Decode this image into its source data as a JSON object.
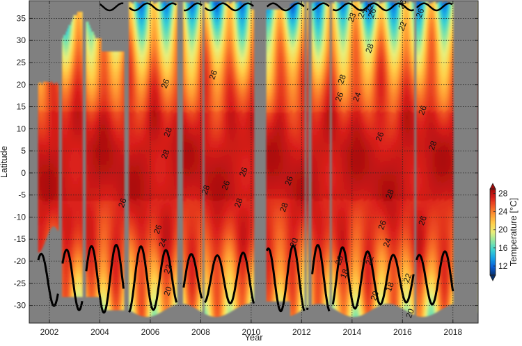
{
  "chart_data": {
    "type": "heatmap",
    "title": "",
    "xlabel": "Year",
    "ylabel": "Latitude",
    "colorbar_label": "Temperature [°C]",
    "xlim": [
      2001.2,
      2019.0
    ],
    "ylim": [
      -34,
      39
    ],
    "x_ticks": [
      2002,
      2004,
      2006,
      2008,
      2010,
      2012,
      2014,
      2016,
      2018
    ],
    "x_tick_labels": [
      "2002",
      "2004",
      "2006",
      "2008",
      "2010",
      "2012",
      "2014",
      "2016",
      "2018"
    ],
    "y_ticks": [
      -30,
      -25,
      -20,
      -15,
      -10,
      -5,
      0,
      5,
      10,
      15,
      20,
      25,
      30,
      35
    ],
    "y_tick_labels": [
      "-30",
      "-25",
      "-20",
      "-15",
      "-10",
      "-5",
      "0",
      "5",
      "10",
      "15",
      "20",
      "25",
      "30",
      "35"
    ],
    "colorbar": {
      "range": [
        10,
        29
      ],
      "ticks": [
        12,
        16,
        20,
        24,
        28
      ],
      "tick_labels": [
        "12",
        "16",
        "20",
        "24",
        "28"
      ],
      "colors": [
        "#08306b",
        "#0b5fd6",
        "#16a2e6",
        "#3cd3d0",
        "#8ee6a0",
        "#e8ee7a",
        "#ffd04a",
        "#ff9a32",
        "#f25a24",
        "#d91f1a",
        "#a00a0a"
      ]
    },
    "grid": true,
    "missing_color": "#808080",
    "highlighted_contour": 20,
    "contour_labels": [
      {
        "text": "26",
        "x": 2006.7,
        "y": 20
      },
      {
        "text": "28",
        "x": 2006.8,
        "y": 9
      },
      {
        "text": "28",
        "x": 2006.7,
        "y": 4
      },
      {
        "text": "26",
        "x": 2005.0,
        "y": -7
      },
      {
        "text": "26",
        "x": 2006.4,
        "y": -13
      },
      {
        "text": "24",
        "x": 2006.6,
        "y": -16
      },
      {
        "text": "22",
        "x": 2006.8,
        "y": -22
      },
      {
        "text": "20",
        "x": 2006.8,
        "y": -27
      },
      {
        "text": "28",
        "x": 2008.3,
        "y": -4
      },
      {
        "text": "26",
        "x": 2009.1,
        "y": -3
      },
      {
        "text": "28",
        "x": 2009.6,
        "y": -7
      },
      {
        "text": "26",
        "x": 2009.8,
        "y": 0
      },
      {
        "text": "26",
        "x": 2008.6,
        "y": 22
      },
      {
        "text": "26",
        "x": 2011.6,
        "y": -2
      },
      {
        "text": "28",
        "x": 2011.4,
        "y": -8
      },
      {
        "text": "20",
        "x": 2011.8,
        "y": -16
      },
      {
        "text": "28",
        "x": 2013.7,
        "y": 21
      },
      {
        "text": "26",
        "x": 2013.6,
        "y": 17
      },
      {
        "text": "24",
        "x": 2014.3,
        "y": 17
      },
      {
        "text": "20",
        "x": 2013.6,
        "y": -20
      },
      {
        "text": "18",
        "x": 2013.8,
        "y": -23
      },
      {
        "text": "23",
        "x": 2014.1,
        "y": 35
      },
      {
        "text": "24",
        "x": 2014.5,
        "y": 36
      },
      {
        "text": "22",
        "x": 2014.8,
        "y": 37
      },
      {
        "text": "26",
        "x": 2014.9,
        "y": 36
      },
      {
        "text": "28",
        "x": 2014.8,
        "y": 28
      },
      {
        "text": "26",
        "x": 2016.1,
        "y": 38
      },
      {
        "text": "22",
        "x": 2016.1,
        "y": 33
      },
      {
        "text": "26",
        "x": 2016.8,
        "y": 36
      },
      {
        "text": "26",
        "x": 2016.9,
        "y": 14
      },
      {
        "text": "26",
        "x": 2015.2,
        "y": 8
      },
      {
        "text": "28",
        "x": 2017.3,
        "y": 6
      },
      {
        "text": "28",
        "x": 2015.6,
        "y": -5
      },
      {
        "text": "26",
        "x": 2015.3,
        "y": -12
      },
      {
        "text": "24",
        "x": 2015.5,
        "y": -16
      },
      {
        "text": "22",
        "x": 2014.8,
        "y": -20
      },
      {
        "text": "20",
        "x": 2015.0,
        "y": -28
      },
      {
        "text": "18",
        "x": 2015.6,
        "y": -26
      },
      {
        "text": "22",
        "x": 2016.3,
        "y": -24
      },
      {
        "text": "26",
        "x": 2016.9,
        "y": -11
      },
      {
        "text": "20",
        "x": 2016.4,
        "y": -32
      }
    ]
  }
}
